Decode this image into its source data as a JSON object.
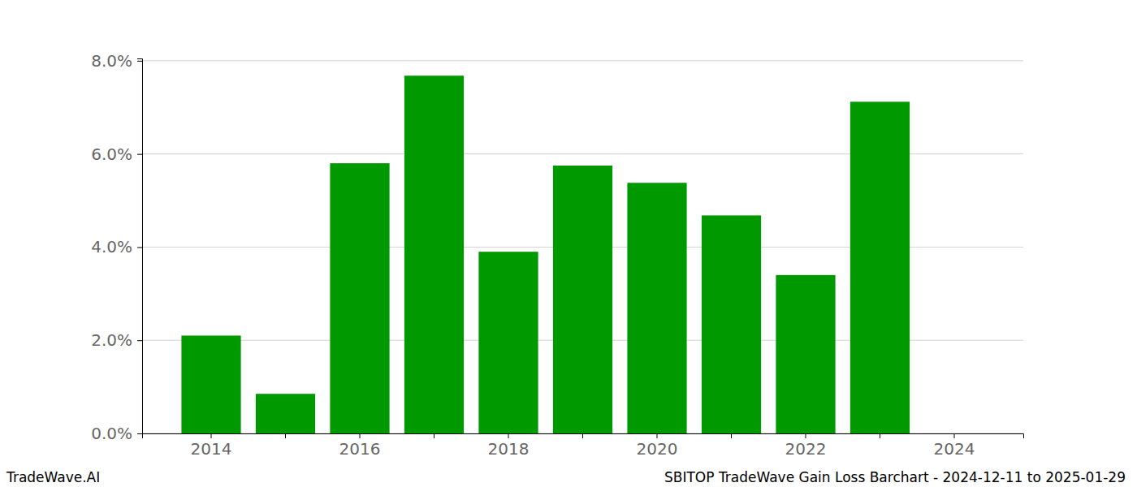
{
  "chart_data": {
    "type": "bar",
    "title": "SBITOP TradeWave Gain Loss Barchart - 2024-12-11 to 2025-01-29",
    "annotations": [
      "TradeWave.AI"
    ],
    "categories": [
      "2014",
      null,
      "2016",
      null,
      "2018",
      null,
      "2020",
      null,
      "2022",
      null,
      "2024"
    ],
    "values": [
      2.1,
      0.85,
      5.8,
      7.68,
      3.9,
      5.75,
      5.38,
      4.68,
      3.4,
      7.12,
      null
    ],
    "color": "#009900",
    "ylim": [
      0,
      8.05
    ],
    "yticks": [
      {
        "value": 0,
        "label": "0.0%"
      },
      {
        "value": 2,
        "label": "2.0%"
      },
      {
        "value": 4,
        "label": "4.0%"
      },
      {
        "value": 6,
        "label": "6.0%"
      },
      {
        "value": 8,
        "label": "8.0%"
      }
    ],
    "grid": true
  }
}
